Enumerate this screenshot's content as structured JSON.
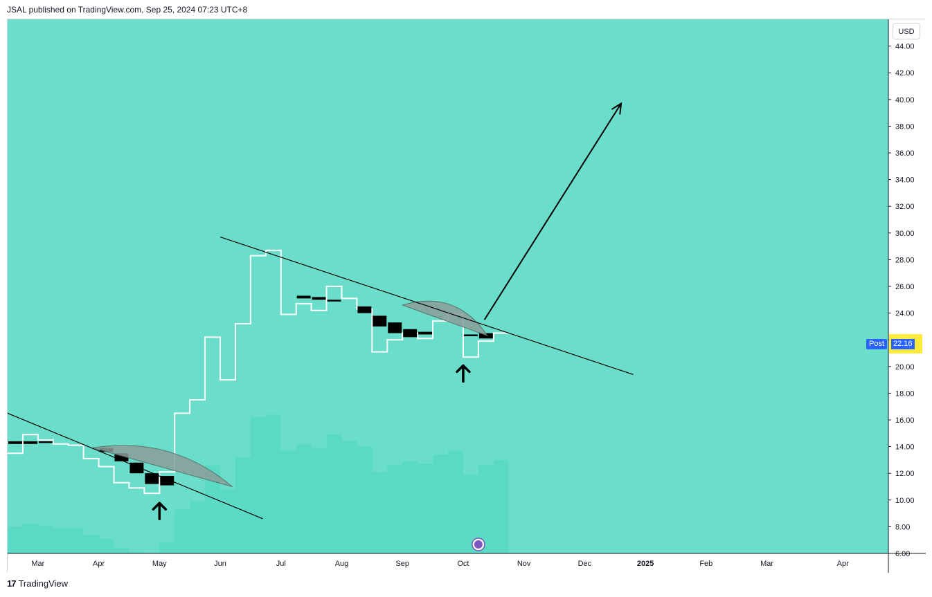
{
  "header": {
    "publisher": "JSAL published on TradingView.com, Sep 25, 2024 07:23 UTC+8"
  },
  "toolbar": {
    "currency": "USD"
  },
  "footer": {
    "logo_mark": "17",
    "brand": "TradingView"
  },
  "price_labels": {
    "post_label": "Post",
    "post_price": "22.16"
  },
  "colors": {
    "background": "#6adecb",
    "volume": "#5ad9c4",
    "step_line": "#ffffff",
    "candle_body": "#000000",
    "arc_fill": "#8a9e98"
  },
  "chart_data": {
    "type": "line",
    "title": "",
    "xlabel": "",
    "ylabel": "",
    "ylim": [
      6,
      46
    ],
    "y_ticks": [
      "6.00",
      "8.00",
      "10.00",
      "12.00",
      "14.00",
      "16.00",
      "18.00",
      "20.00",
      "22.00",
      "24.00",
      "26.00",
      "28.00",
      "30.00",
      "32.00",
      "34.00",
      "36.00",
      "38.00",
      "40.00",
      "42.00",
      "44.00"
    ],
    "x_ticks": [
      "Mar",
      "Apr",
      "May",
      "Jun",
      "Jul",
      "Aug",
      "Sep",
      "Oct",
      "Nov",
      "Dec",
      "2025",
      "Feb",
      "Mar",
      "Apr"
    ],
    "x_tick_positions": [
      2.0,
      3.0,
      4.0,
      5.0,
      6.0,
      7.0,
      8.0,
      9.0,
      10.0,
      11.0,
      12.0,
      13.0,
      14.0,
      15.25
    ],
    "x_range": [
      1.5,
      16.0
    ],
    "series": [
      {
        "name": "price",
        "style": "step",
        "start_x": 1.5,
        "step": 0.25,
        "values": [
          13.5,
          14.9,
          14.5,
          14.2,
          14.1,
          13.1,
          12.5,
          11.3,
          10.9,
          10.5,
          12.1,
          16.5,
          17.5,
          22.2,
          19.0,
          23.2,
          28.3,
          28.7,
          23.9,
          24.7,
          24.2,
          26.0,
          25.1,
          24.3,
          21.1,
          22.0,
          22.5,
          22.1,
          23.4,
          23.9,
          20.7,
          21.9,
          22.5
        ]
      },
      {
        "name": "volume",
        "style": "columns",
        "start_x": 1.5,
        "step": 0.25,
        "values": [
          8.0,
          8.2,
          8.1,
          7.9,
          7.9,
          7.4,
          7.1,
          6.4,
          6.1,
          5.9,
          6.8,
          9.3,
          9.9,
          12.6,
          10.8,
          13.2,
          16.2,
          16.4,
          13.7,
          14.2,
          13.9,
          14.9,
          14.4,
          14.0,
          12.1,
          12.6,
          12.9,
          12.7,
          13.4,
          13.7,
          11.9,
          12.6,
          13.0
        ]
      }
    ],
    "candles": [
      {
        "x": 1.5,
        "open": 14.4,
        "close": 14.2
      },
      {
        "x": 1.75,
        "open": 14.4,
        "close": 14.2
      },
      {
        "x": 2.0,
        "open": 14.4,
        "close": 14.3
      },
      {
        "x": 3.0,
        "open": 13.9,
        "close": 13.6
      },
      {
        "x": 3.25,
        "open": 13.5,
        "close": 12.9
      },
      {
        "x": 3.5,
        "open": 12.8,
        "close": 12.0
      },
      {
        "x": 3.75,
        "open": 12.0,
        "close": 11.2
      },
      {
        "x": 4.0,
        "open": 11.8,
        "close": 11.1
      },
      {
        "x": 6.25,
        "open": 25.3,
        "close": 25.1
      },
      {
        "x": 6.5,
        "open": 25.2,
        "close": 25.0
      },
      {
        "x": 6.75,
        "open": 25.0,
        "close": 24.9
      },
      {
        "x": 7.25,
        "open": 24.5,
        "close": 24.0
      },
      {
        "x": 7.5,
        "open": 23.8,
        "close": 23.0
      },
      {
        "x": 7.75,
        "open": 23.3,
        "close": 22.5
      },
      {
        "x": 8.0,
        "open": 22.8,
        "close": 22.2
      },
      {
        "x": 8.25,
        "open": 22.6,
        "close": 22.4
      },
      {
        "x": 9.0,
        "open": 22.4,
        "close": 22.3
      },
      {
        "x": 9.25,
        "open": 22.5,
        "close": 22.1
      }
    ],
    "annotations": {
      "trendlines": [
        {
          "x1": 1.5,
          "y1": 16.5,
          "x2": 5.7,
          "y2": 8.6
        },
        {
          "x1": 5.0,
          "y1": 29.7,
          "x2": 11.8,
          "y2": 19.4
        }
      ],
      "arcs": [
        {
          "x1": 2.9,
          "y1": 13.9,
          "x2": 5.2,
          "y2": 11.0
        },
        {
          "x1": 8.0,
          "y1": 24.6,
          "x2": 9.4,
          "y2": 22.3
        }
      ],
      "arrow": {
        "x1": 9.35,
        "y1": 23.5,
        "x2": 11.6,
        "y2": 39.7
      },
      "up_markers": [
        {
          "x": 4.0,
          "y": 9.2
        },
        {
          "x": 9.0,
          "y": 19.5
        }
      ],
      "last_price": 22.16,
      "price_line_values": [
        22.62,
        22.16,
        21.71
      ]
    }
  }
}
